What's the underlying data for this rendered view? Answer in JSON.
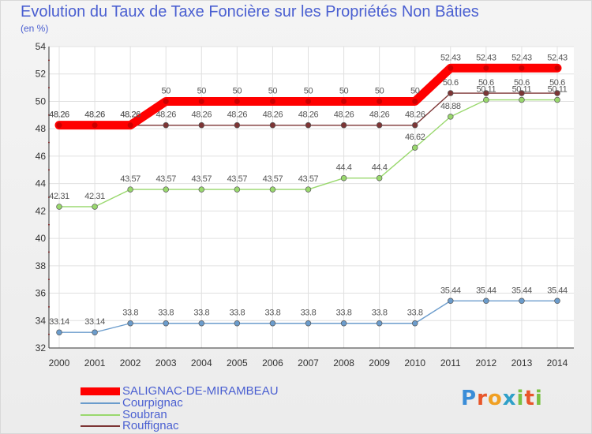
{
  "chart_data": {
    "type": "line",
    "title": "Evolution du Taux de Taxe Foncière sur les Propriétés Non Bâties",
    "subtitle": "(en %)",
    "x": [
      "2000",
      "2001",
      "2002",
      "2003",
      "2004",
      "2005",
      "2006",
      "2007",
      "2008",
      "2009",
      "2010",
      "2011",
      "2012",
      "2013",
      "2014"
    ],
    "ylim": [
      32,
      54
    ],
    "yticks": [
      32,
      34,
      36,
      38,
      40,
      42,
      44,
      46,
      48,
      50,
      52,
      54
    ],
    "grid": true,
    "series": [
      {
        "name": "SALIGNAC-DE-MIRAMBEAU",
        "color": "#ff0000",
        "values": [
          48.26,
          48.26,
          48.26,
          50,
          50,
          50,
          50,
          50,
          50,
          50,
          50,
          52.43,
          52.43,
          52.43,
          52.43
        ],
        "labels": [
          "48.26",
          "48.26",
          "48.26",
          "50",
          "50",
          "50",
          "50",
          "50",
          "50",
          "50",
          "50",
          "52.43",
          "52.43",
          "52.43",
          "52.43"
        ]
      },
      {
        "name": "Courpignac",
        "color": "#6b9ccc",
        "values": [
          33.14,
          33.14,
          33.8,
          33.8,
          33.8,
          33.8,
          33.8,
          33.8,
          33.8,
          33.8,
          33.8,
          35.44,
          35.44,
          35.44,
          35.44
        ],
        "labels": [
          "33.14",
          "33.14",
          "33.8",
          "33.8",
          "33.8",
          "33.8",
          "33.8",
          "33.8",
          "33.8",
          "33.8",
          "33.8",
          "35.44",
          "35.44",
          "35.44",
          "35.44"
        ]
      },
      {
        "name": "Soubran",
        "color": "#99d86d",
        "values": [
          42.31,
          42.31,
          43.57,
          43.57,
          43.57,
          43.57,
          43.57,
          43.57,
          44.4,
          44.4,
          46.62,
          48.88,
          50.11,
          50.11,
          50.11
        ],
        "labels": [
          "42.31",
          "42.31",
          "43.57",
          "43.57",
          "43.57",
          "43.57",
          "43.57",
          "43.57",
          "44.4",
          "44.4",
          "46.62",
          "48.88",
          "50.11",
          "50.11",
          "50.11"
        ]
      },
      {
        "name": "Rouffignac",
        "color": "#7d3535",
        "values": [
          48.26,
          48.26,
          48.26,
          48.26,
          48.26,
          48.26,
          48.26,
          48.26,
          48.26,
          48.26,
          48.26,
          50.6,
          50.6,
          50.6,
          50.6
        ],
        "labels": [
          "48.26",
          "48.26",
          "48.26",
          "48.26",
          "48.26",
          "48.26",
          "48.26",
          "48.26",
          "48.26",
          "48.26",
          "48.26",
          "50.6",
          "50.6",
          "50.6",
          "50.6"
        ]
      }
    ]
  },
  "legend": {
    "items": [
      {
        "name": "SALIGNAC-DE-MIRAMBEAU",
        "color": "#ff0000"
      },
      {
        "name": "Courpignac",
        "color": "#6b9ccc"
      },
      {
        "name": "Soubran",
        "color": "#99d86d"
      },
      {
        "name": "Rouffignac",
        "color": "#7d3535"
      }
    ]
  },
  "logo": {
    "text": "Proxiti"
  }
}
